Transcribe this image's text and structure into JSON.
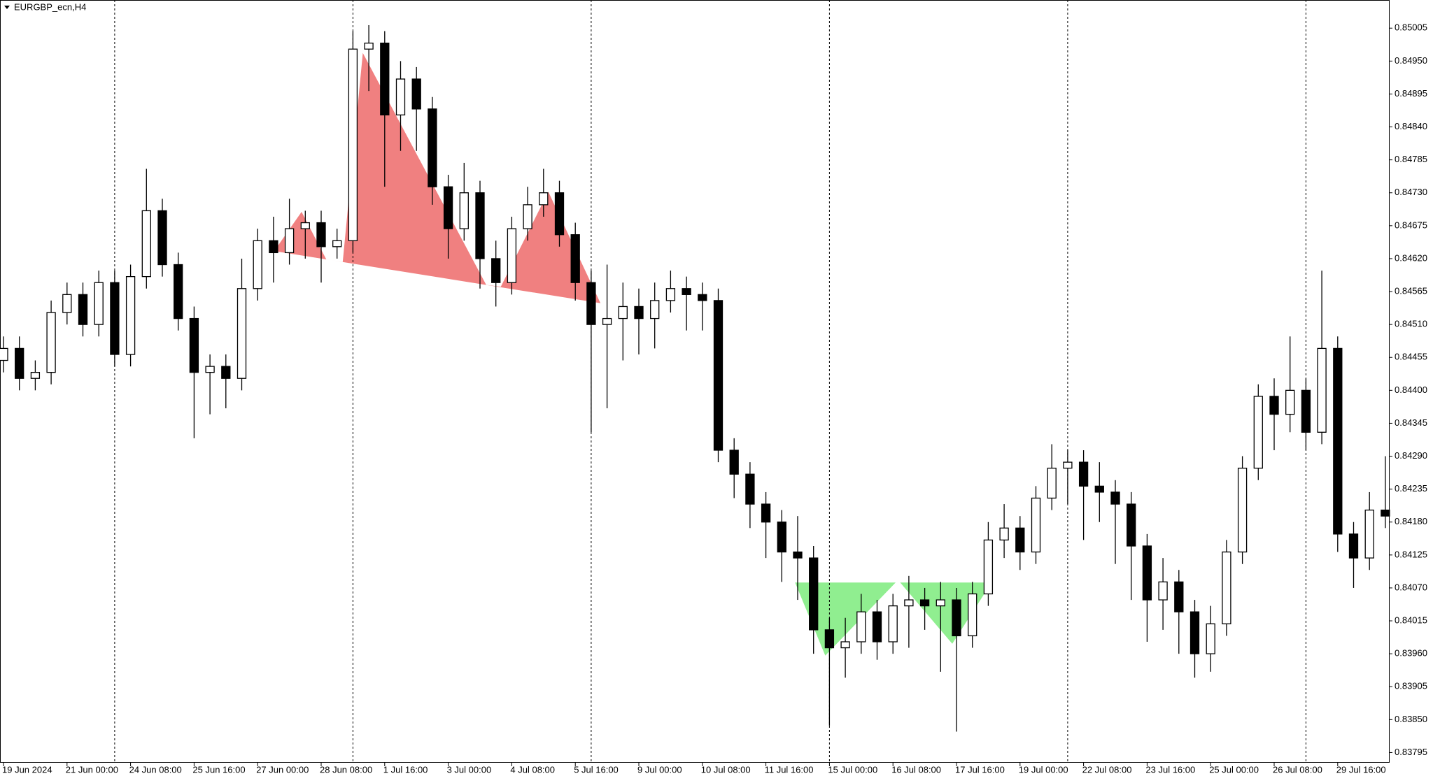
{
  "chart_data": {
    "type": "candlestick",
    "title": "EURGBP_ecn,H4",
    "categories": [
      "19 Jun 2024",
      null,
      null,
      null,
      "21 Jun 00:00",
      null,
      null,
      null,
      "24 Jun 08:00",
      null,
      null,
      null,
      "25 Jun 16:00",
      null,
      null,
      null,
      "27 Jun 00:00",
      null,
      null,
      null,
      "28 Jun 08:00",
      null,
      null,
      null,
      "1 Jul 16:00",
      null,
      null,
      null,
      "3 Jul 00:00",
      null,
      null,
      null,
      "4 Jul 08:00",
      null,
      null,
      null,
      "5 Jul 16:00",
      null,
      null,
      null,
      "9 Jul 00:00",
      null,
      null,
      null,
      "10 Jul 08:00",
      null,
      null,
      null,
      "11 Jul 16:00",
      null,
      null,
      null,
      "15 Jul 00:00",
      null,
      null,
      null,
      "16 Jul 08:00",
      null,
      null,
      null,
      "17 Jul 16:00",
      null,
      null,
      null,
      "19 Jul 00:00",
      null,
      null,
      null,
      "22 Jul 08:00",
      null,
      null,
      null,
      "23 Jul 16:00",
      null,
      null,
      null,
      "25 Jul 00:00",
      null,
      null,
      null,
      "26 Jul 08:00",
      null,
      null,
      null,
      "29 Jul 16:00",
      null,
      null,
      null
    ],
    "open": [
      0.8445,
      0.8447,
      0.8442,
      0.8443,
      0.8453,
      0.8456,
      0.8451,
      0.8458,
      0.8446,
      0.8459,
      0.847,
      0.8461,
      0.8452,
      0.8443,
      0.8444,
      0.8442,
      0.8457,
      0.8465,
      0.8463,
      0.8467,
      0.8468,
      0.8464,
      0.8465,
      0.8497,
      0.8498,
      0.8486,
      0.8492,
      0.8487,
      0.8474,
      0.8467,
      0.8473,
      0.8462,
      0.8458,
      0.8467,
      0.8471,
      0.8473,
      0.8466,
      0.8458,
      0.8451,
      0.8452,
      0.8454,
      0.8452,
      0.8455,
      0.8457,
      0.8456,
      0.8455,
      0.843,
      0.8426,
      0.8421,
      0.8418,
      0.8413,
      0.8412,
      0.84,
      0.8397,
      0.8398,
      0.8403,
      0.8398,
      0.8404,
      0.8405,
      0.8404,
      0.8405,
      0.8399,
      0.8406,
      0.8415,
      0.8417,
      0.8413,
      0.8422,
      0.8427,
      0.8428,
      0.8424,
      0.8423,
      0.8421,
      0.8414,
      0.8405,
      0.8408,
      0.8403,
      0.8396,
      0.8401,
      0.8413,
      0.8427,
      0.8439,
      0.8436,
      0.844,
      0.8433,
      0.8447,
      0.8416,
      0.8412,
      0.842
    ],
    "high": [
      0.8449,
      0.8449,
      0.8445,
      0.8455,
      0.8458,
      0.8458,
      0.846,
      0.846,
      0.8461,
      0.8477,
      0.8472,
      0.8463,
      0.8454,
      0.8446,
      0.8446,
      0.8462,
      0.8467,
      0.8469,
      0.8472,
      0.847,
      0.847,
      0.8467,
      0.85,
      0.8501,
      0.85,
      0.8495,
      0.8494,
      0.8489,
      0.8476,
      0.8478,
      0.8475,
      0.8465,
      0.8469,
      0.8474,
      0.8477,
      0.8475,
      0.8468,
      0.846,
      0.8461,
      0.8458,
      0.8457,
      0.8458,
      0.846,
      0.8459,
      0.8458,
      0.8457,
      0.8432,
      0.8428,
      0.8423,
      0.842,
      0.8419,
      0.8414,
      0.8402,
      0.8402,
      0.8406,
      0.8405,
      0.8406,
      0.8409,
      0.8407,
      0.8408,
      0.8407,
      0.8408,
      0.8418,
      0.8421,
      0.8419,
      0.8424,
      0.8431,
      0.843,
      0.843,
      0.8428,
      0.8425,
      0.8423,
      0.8416,
      0.8412,
      0.841,
      0.8405,
      0.8404,
      0.8415,
      0.8429,
      0.8441,
      0.8442,
      0.8449,
      0.8442,
      0.846,
      0.8449,
      0.8418,
      0.8423,
      0.8429
    ],
    "low": [
      0.8443,
      0.844,
      0.844,
      0.8441,
      0.8451,
      0.8449,
      0.8449,
      0.8444,
      0.8444,
      0.8457,
      0.8459,
      0.845,
      0.8432,
      0.8436,
      0.8437,
      0.844,
      0.8455,
      0.8458,
      0.8461,
      0.8462,
      0.8458,
      0.8462,
      0.8463,
      0.849,
      0.8474,
      0.848,
      0.848,
      0.8471,
      0.8462,
      0.8465,
      0.8457,
      0.8454,
      0.8456,
      0.8465,
      0.8469,
      0.8464,
      0.8455,
      0.8433,
      0.8437,
      0.8445,
      0.8446,
      0.8447,
      0.8453,
      0.845,
      0.845,
      0.8428,
      0.8422,
      0.8417,
      0.8412,
      0.8408,
      0.8405,
      0.8396,
      0.8384,
      0.8392,
      0.8396,
      0.8395,
      0.8396,
      0.8397,
      0.84,
      0.8393,
      0.8383,
      0.8397,
      0.8404,
      0.8412,
      0.841,
      0.8411,
      0.842,
      0.8421,
      0.8415,
      0.8418,
      0.8411,
      0.8405,
      0.8398,
      0.84,
      0.8396,
      0.8392,
      0.8393,
      0.8399,
      0.8411,
      0.8425,
      0.843,
      0.8433,
      0.843,
      0.8431,
      0.8413,
      0.8407,
      0.841,
      0.8417
    ],
    "close": [
      0.8447,
      0.8442,
      0.8443,
      0.8453,
      0.8456,
      0.8451,
      0.8458,
      0.8446,
      0.8459,
      0.847,
      0.8461,
      0.8452,
      0.8443,
      0.8444,
      0.8442,
      0.8457,
      0.8465,
      0.8463,
      0.8467,
      0.8468,
      0.8464,
      0.8465,
      0.8497,
      0.8498,
      0.8486,
      0.8492,
      0.8487,
      0.8474,
      0.8467,
      0.8473,
      0.8462,
      0.8458,
      0.8467,
      0.8471,
      0.8473,
      0.8466,
      0.8458,
      0.8451,
      0.8452,
      0.8454,
      0.8452,
      0.8455,
      0.8457,
      0.8456,
      0.8455,
      0.843,
      0.8426,
      0.8421,
      0.8418,
      0.8413,
      0.8412,
      0.84,
      0.8397,
      0.8398,
      0.8403,
      0.8398,
      0.8404,
      0.8405,
      0.8404,
      0.8405,
      0.8399,
      0.8406,
      0.8415,
      0.8417,
      0.8413,
      0.8422,
      0.8427,
      0.8428,
      0.8424,
      0.8423,
      0.8421,
      0.8414,
      0.8405,
      0.8408,
      0.8403,
      0.8396,
      0.8401,
      0.8413,
      0.8427,
      0.8439,
      0.8436,
      0.844,
      0.8433,
      0.8447,
      0.8416,
      0.8412,
      0.842,
      0.8419
    ],
    "up_color": "#ffffff",
    "down_color": "#000000",
    "ylim": [
      0.83778,
      0.85052
    ],
    "yticks": [
      0.85005,
      {
        "value": 0.8495,
        "label": "0.84950"
      },
      0.84895,
      {
        "value": 0.8484,
        "label": "0.84840"
      },
      0.84785,
      {
        "value": 0.8473,
        "label": "0.84730"
      },
      0.84675,
      {
        "value": 0.8462,
        "label": "0.84620"
      },
      0.84565,
      {
        "value": 0.8451,
        "label": "0.84510"
      },
      0.84455,
      {
        "value": 0.844,
        "label": "0.84400"
      },
      0.84345,
      {
        "value": 0.8429,
        "label": "0.84290"
      },
      0.84235,
      {
        "value": 0.8418,
        "label": "0.84180"
      },
      0.84125,
      {
        "value": 0.8407,
        "label": "0.84070"
      },
      0.84015,
      {
        "value": 0.8396,
        "label": "0.83960"
      },
      0.83905,
      {
        "value": 0.8385,
        "label": "0.83850"
      },
      0.83795
    ],
    "grid": false
  }
}
